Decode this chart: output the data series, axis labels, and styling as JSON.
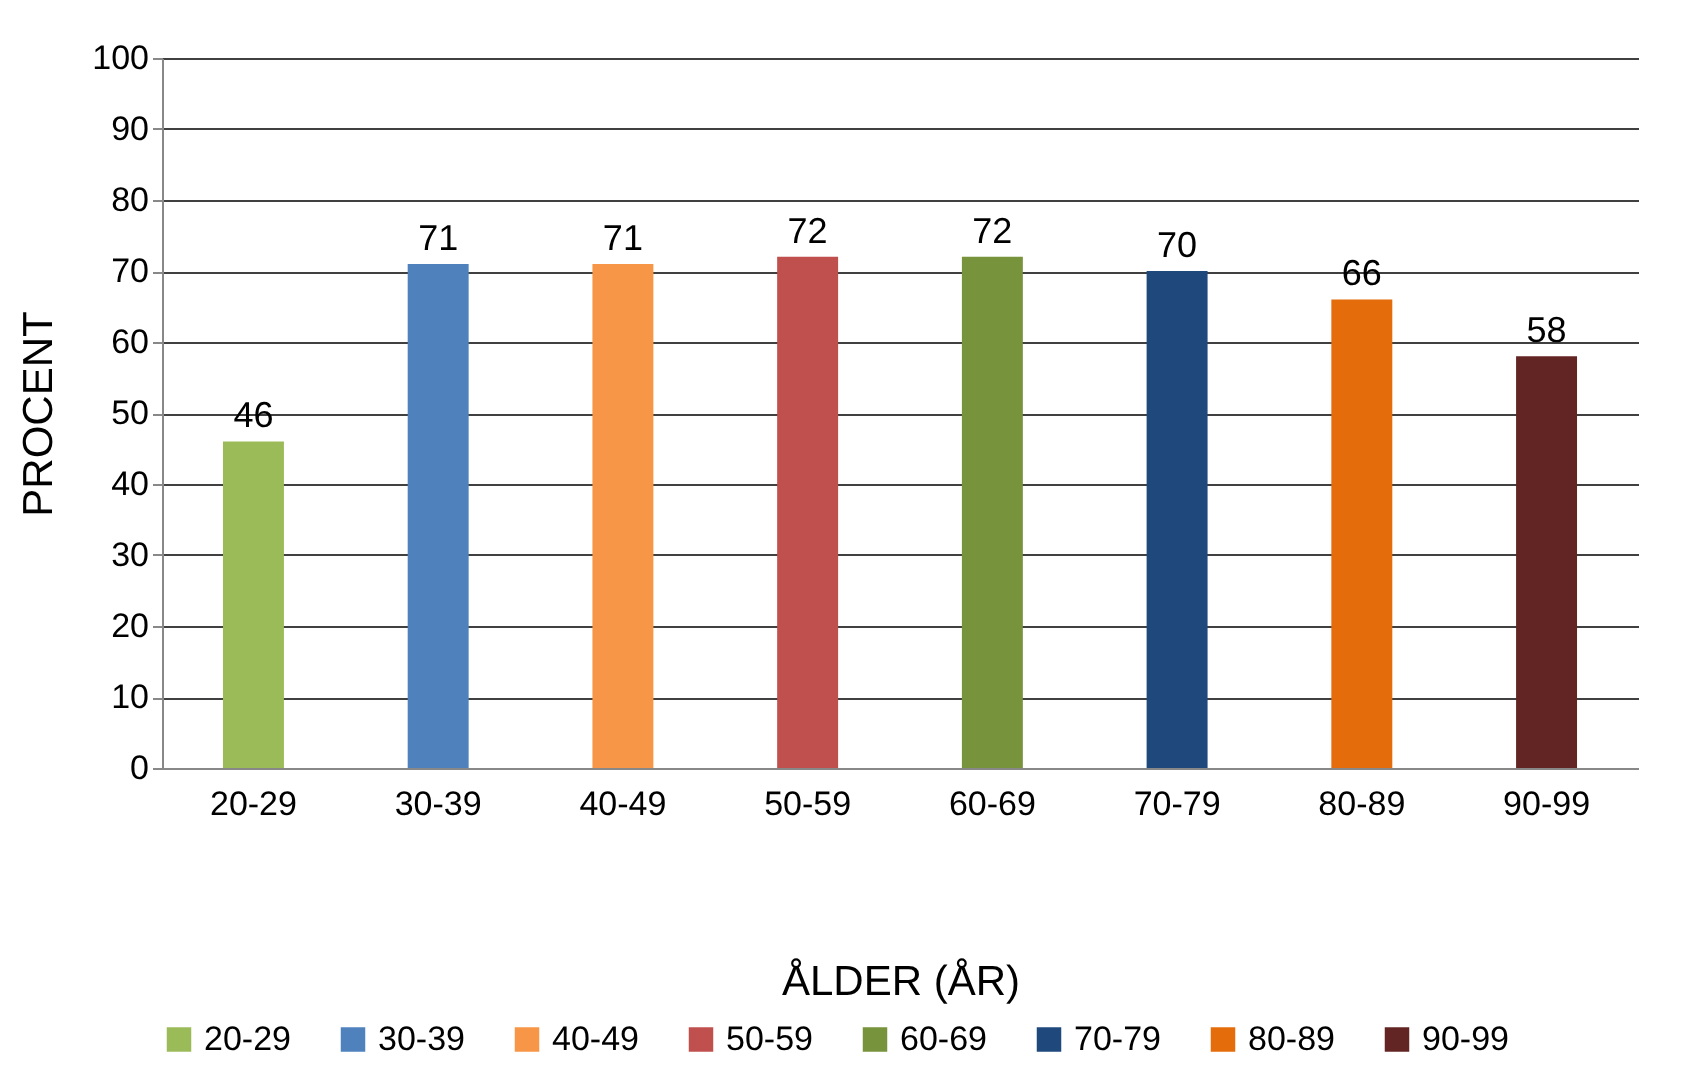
{
  "chart_data": {
    "type": "bar",
    "categories": [
      "20-29",
      "30-39",
      "40-49",
      "50-59",
      "60-69",
      "70-79",
      "80-89",
      "90-99"
    ],
    "series": [
      {
        "name": "20-29",
        "color": "#9bbb59",
        "values": [
          46,
          null,
          null,
          null,
          null,
          null,
          null,
          null
        ]
      },
      {
        "name": "30-39",
        "color": "#4f81bd",
        "values": [
          null,
          71,
          null,
          null,
          null,
          null,
          null,
          null
        ]
      },
      {
        "name": "40-49",
        "color": "#f79646",
        "values": [
          null,
          null,
          71,
          null,
          null,
          null,
          null,
          null
        ]
      },
      {
        "name": "50-59",
        "color": "#c0504d",
        "values": [
          null,
          null,
          null,
          72,
          null,
          null,
          null,
          null
        ]
      },
      {
        "name": "60-69",
        "color": "#77933c",
        "values": [
          null,
          null,
          null,
          null,
          72,
          null,
          null,
          null
        ]
      },
      {
        "name": "70-79",
        "color": "#1f497d",
        "values": [
          null,
          null,
          null,
          null,
          null,
          70,
          null,
          null
        ]
      },
      {
        "name": "80-89",
        "color": "#e46c0a",
        "values": [
          null,
          null,
          null,
          null,
          null,
          null,
          66,
          null
        ]
      },
      {
        "name": "90-99",
        "color": "#632523",
        "values": [
          null,
          null,
          null,
          null,
          null,
          null,
          null,
          58
        ]
      }
    ],
    "xlabel": "ÅLDER (ÅR)",
    "ylabel": "PROCENT",
    "ylim": [
      0,
      100
    ],
    "yticks": [
      0,
      10,
      20,
      30,
      40,
      50,
      60,
      70,
      80,
      90,
      100
    ],
    "grid": "y",
    "legend": "bottom",
    "data_labels": true
  }
}
